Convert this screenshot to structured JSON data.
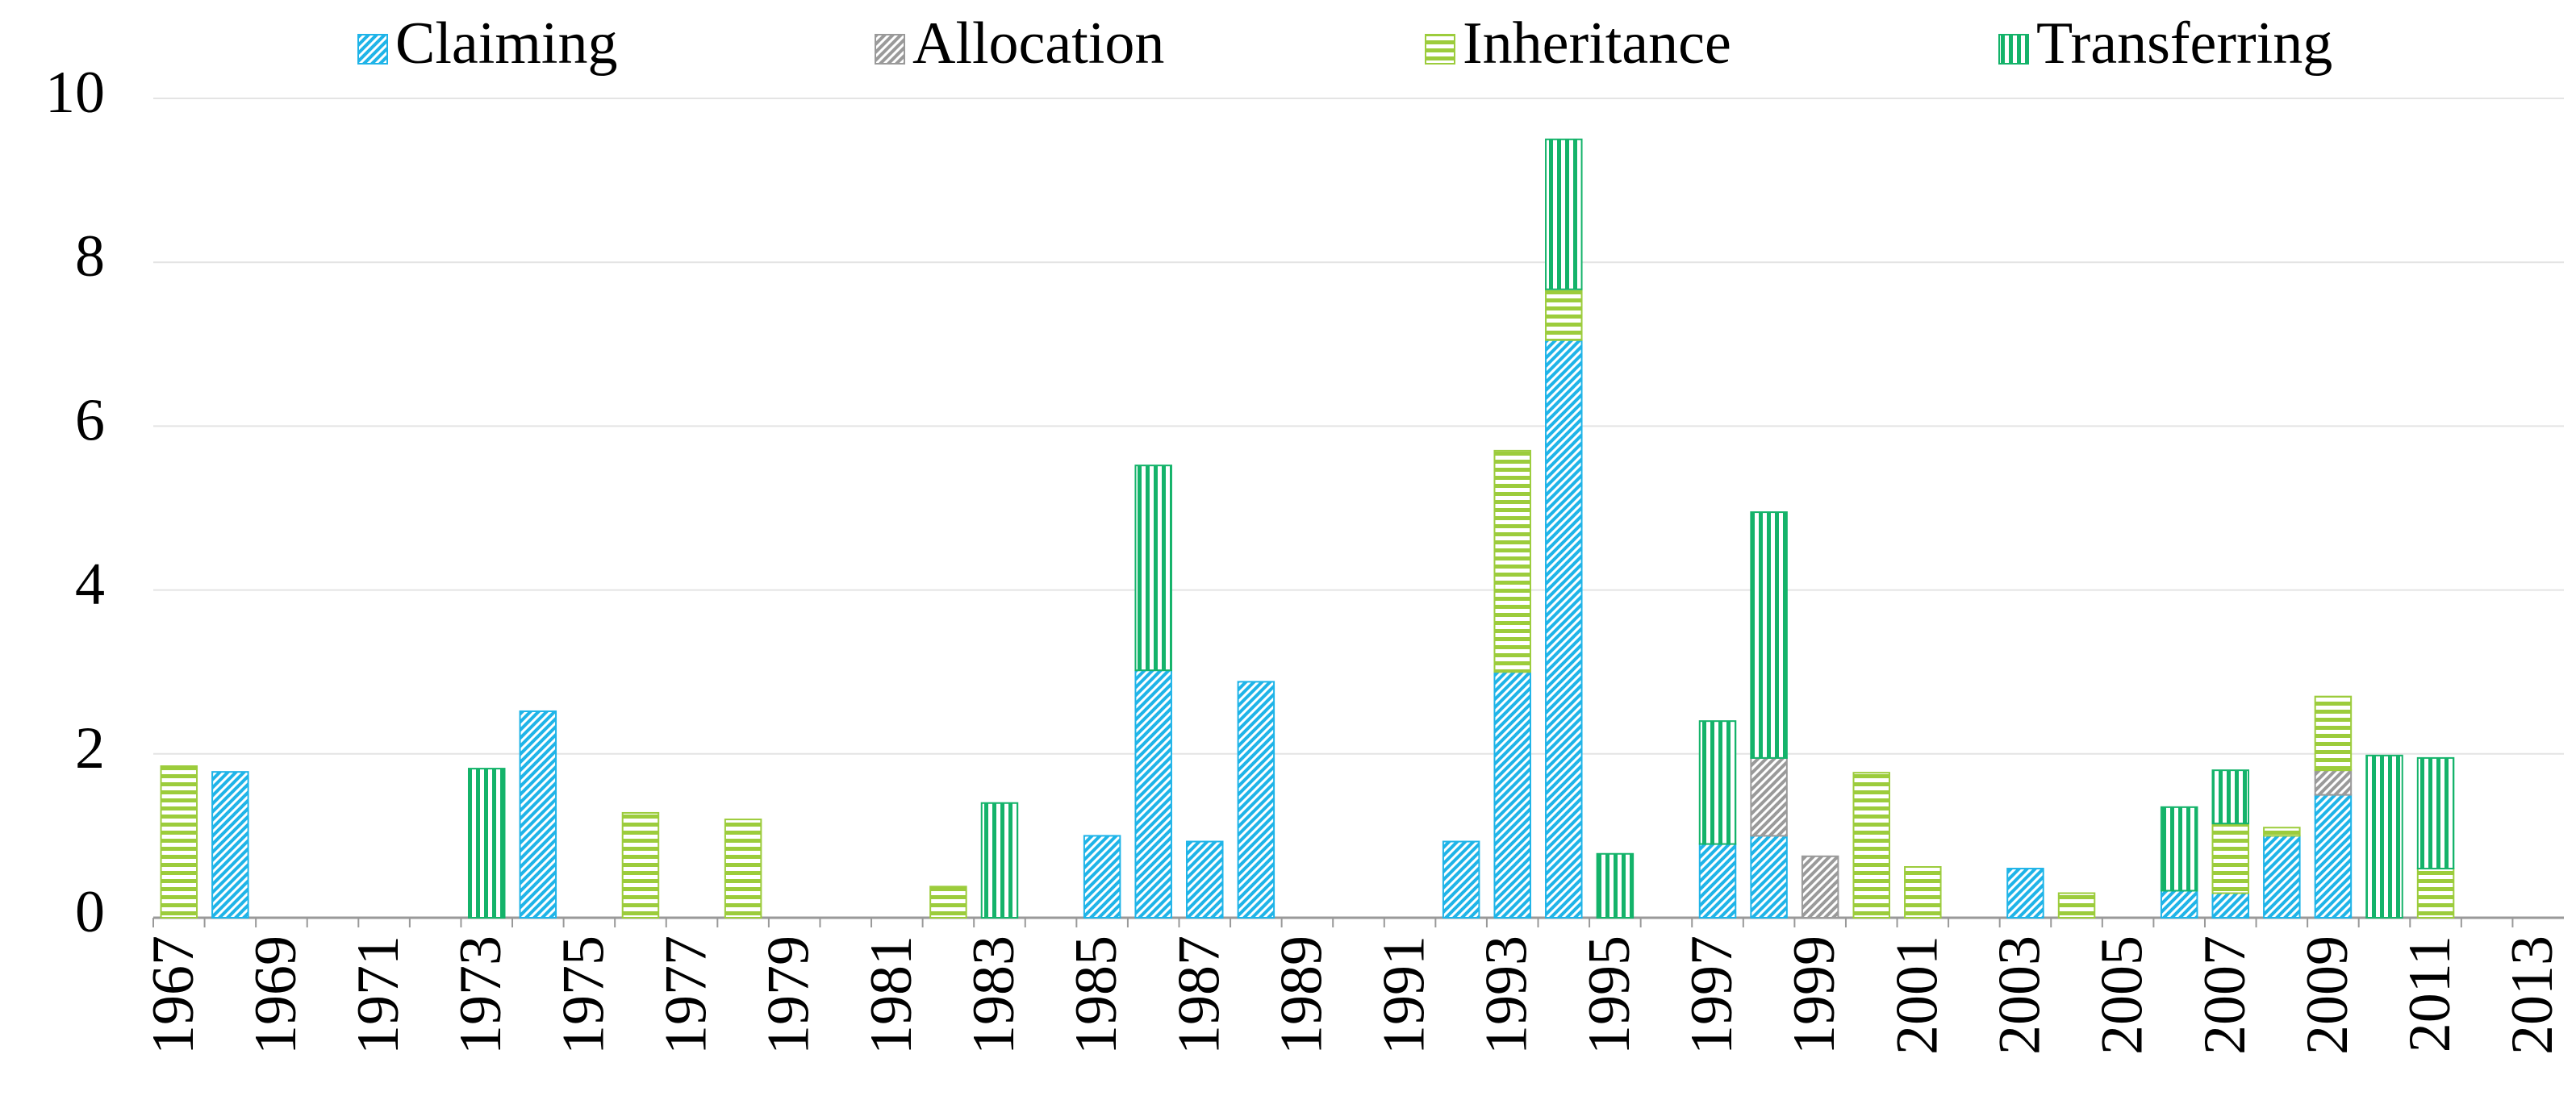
{
  "chart_data": {
    "type": "stacked_bar",
    "categories": [
      "1967",
      null,
      "1969",
      null,
      "1971",
      null,
      "1973",
      null,
      "1975",
      null,
      "1977",
      null,
      "1979",
      null,
      "1981",
      null,
      "1983",
      null,
      "1985",
      null,
      "1987",
      null,
      "1989",
      null,
      "1991",
      null,
      "1993",
      null,
      "1995",
      null,
      "1997",
      null,
      "1999",
      null,
      "2001",
      null,
      "2003",
      null,
      "2005",
      null,
      "2007",
      null,
      "2009",
      null,
      "2011",
      null,
      "2013"
    ],
    "series": [
      {
        "name": "Claiming",
        "color": "#1fb4e8",
        "values": [
          0,
          1.78,
          0,
          0,
          0,
          0,
          0,
          2.52,
          0,
          0,
          0,
          0,
          0,
          0,
          0,
          0,
          0,
          0,
          1.0,
          3.02,
          0.93,
          2.88,
          0,
          0,
          0,
          0.93,
          3.0,
          7.05,
          0,
          0,
          0.9,
          1.0,
          0,
          0,
          0,
          0,
          0.6,
          0,
          0,
          0.33,
          0.3,
          1.0,
          1.5,
          0,
          0,
          0,
          0
        ]
      },
      {
        "name": "Allocation",
        "color": "#9a9a9a",
        "values": [
          0,
          0,
          0,
          0,
          0,
          0,
          0,
          0,
          0,
          0,
          0,
          0,
          0,
          0,
          0,
          0,
          0,
          0,
          0,
          0,
          0,
          0,
          0,
          0,
          0,
          0,
          0,
          0,
          0,
          0,
          0,
          0.95,
          0.75,
          0,
          0,
          0,
          0,
          0,
          0,
          0,
          0,
          0,
          0.3,
          0,
          0,
          0,
          0
        ]
      },
      {
        "name": "Inheritance",
        "color": "#9ccc3c",
        "values": [
          1.85,
          0,
          0,
          0,
          0,
          0,
          0,
          0,
          0,
          1.28,
          0,
          1.2,
          0,
          0,
          0,
          0.38,
          0,
          0,
          0,
          0,
          0,
          0,
          0,
          0,
          0,
          0,
          2.7,
          0.62,
          0,
          0,
          0,
          0,
          0,
          1.77,
          0.62,
          0,
          0,
          0.3,
          0,
          0,
          0.85,
          0.1,
          0.9,
          0,
          0.6,
          0,
          0
        ]
      },
      {
        "name": "Transferring",
        "color": "#14b36a",
        "values": [
          0,
          0,
          0,
          0,
          0,
          0,
          1.82,
          0,
          0,
          0,
          0,
          0,
          0,
          0,
          0,
          0,
          1.4,
          0,
          0,
          2.5,
          0,
          0,
          0,
          0,
          0,
          0,
          0,
          1.83,
          0.78,
          0,
          1.5,
          3.0,
          0,
          0,
          0,
          0,
          0,
          0,
          0,
          1.02,
          0.65,
          0,
          0,
          1.98,
          1.35,
          0,
          0
        ]
      }
    ],
    "ylim": [
      0,
      10
    ],
    "yticks": [
      0,
      2,
      4,
      6,
      8,
      10
    ],
    "grid": true,
    "legend": "top"
  }
}
